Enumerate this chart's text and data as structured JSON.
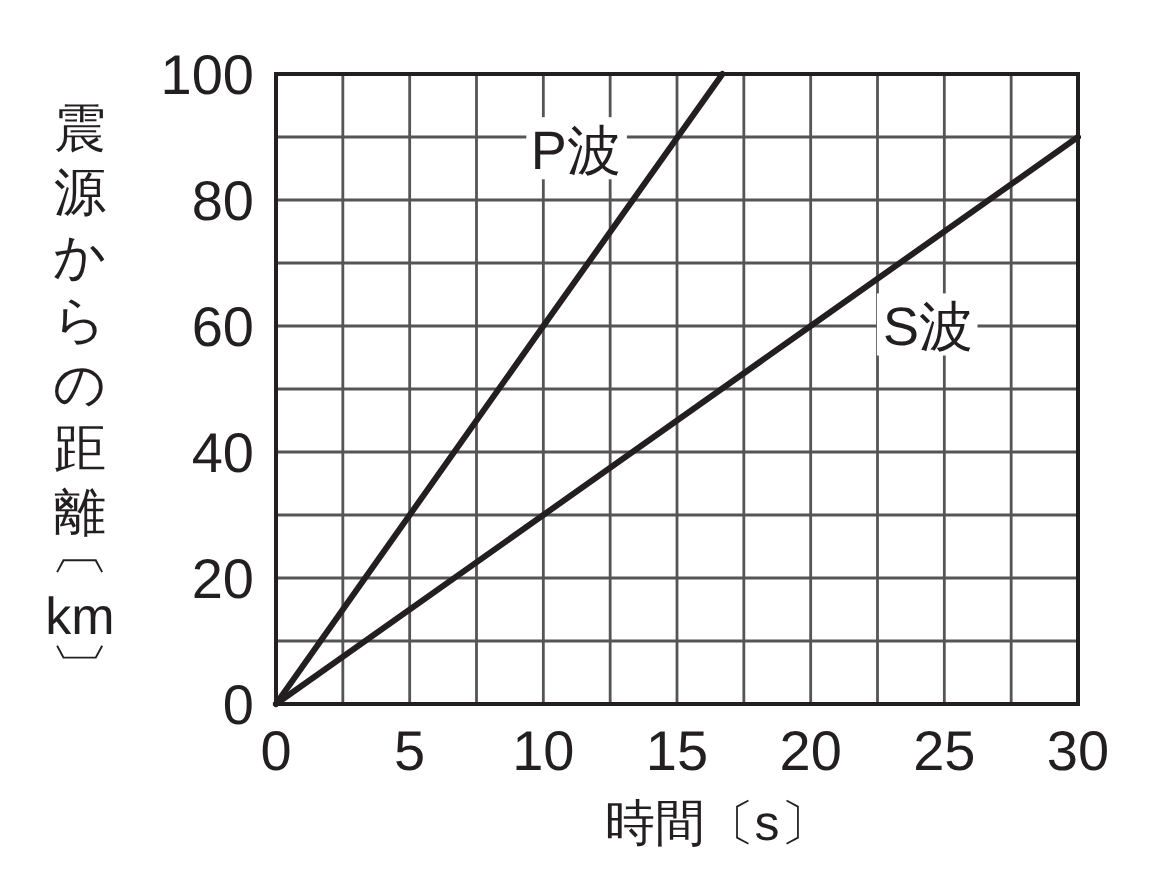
{
  "chart_data": {
    "type": "line",
    "xlabel": "時間〔s〕",
    "ylabel": "震源からの距離〔km〕",
    "xlim": [
      0,
      30
    ],
    "xticks": [
      0,
      {
        "value": 2.5,
        "label": null
      },
      5,
      {
        "value": 7.5,
        "label": null
      },
      10,
      {
        "value": 12.5,
        "label": null
      },
      15,
      {
        "value": 17.5,
        "label": null
      },
      20,
      {
        "value": 22.5,
        "label": null
      },
      25,
      {
        "value": 27.5,
        "label": null
      },
      30
    ],
    "ylim": [
      0,
      100
    ],
    "yticks": [
      0,
      {
        "value": 10,
        "label": null
      },
      20,
      {
        "value": 30,
        "label": null
      },
      40,
      {
        "value": 50,
        "label": null
      },
      60,
      {
        "value": 70,
        "label": null
      },
      80,
      {
        "value": 90,
        "label": null
      },
      100
    ],
    "grid": true,
    "legend": false,
    "series": [
      {
        "name": "P波",
        "color": "#231f20",
        "x": [
          0,
          10,
          16.7
        ],
        "values": [
          0,
          60,
          100
        ]
      },
      {
        "name": "S波",
        "color": "#231f20",
        "x": [
          0,
          20,
          30
        ],
        "values": [
          0,
          60,
          90
        ]
      }
    ]
  }
}
